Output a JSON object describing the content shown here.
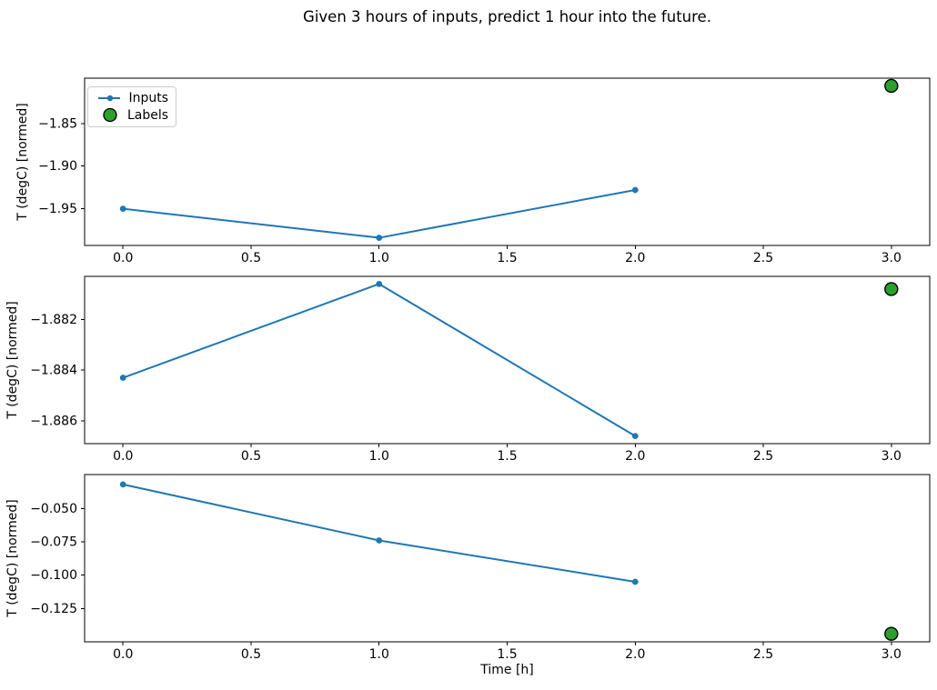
{
  "figure": {
    "title": "Given 3 hours of inputs, predict 1 hour into the future.",
    "xlabel": "Time [h]",
    "legend": {
      "inputs_label": "Inputs",
      "labels_label": "Labels"
    },
    "colors": {
      "inputs_line": "#1f77b4",
      "labels_fill": "#2ca02c",
      "labels_edge": "#000000",
      "spine": "#000000",
      "text": "#000000",
      "legend_border": "#cccccc"
    }
  },
  "chart_data": [
    {
      "type": "line",
      "title": "",
      "ylabel": "T (degC) [normed]",
      "series": [
        {
          "name": "Inputs",
          "x": [
            0,
            1,
            2
          ],
          "values": [
            -1.95,
            -1.984,
            -1.928
          ]
        }
      ],
      "label_point": {
        "name": "Labels",
        "x": 3,
        "y": -1.806
      },
      "xlim": [
        -0.15,
        3.15
      ],
      "ylim": [
        -1.993,
        -1.797
      ],
      "xticks": [
        0.0,
        0.5,
        1.0,
        1.5,
        2.0,
        2.5,
        3.0
      ],
      "xtick_labels": [
        "0.0",
        "0.5",
        "1.0",
        "1.5",
        "2.0",
        "2.5",
        "3.0"
      ],
      "yticks": [
        -1.85,
        -1.9,
        -1.95
      ],
      "ytick_labels": [
        "−1.85",
        "−1.90",
        "−1.95"
      ],
      "grid": false,
      "legend_position": "upper left",
      "has_legend": true
    },
    {
      "type": "line",
      "title": "",
      "ylabel": "T (degC) [normed]",
      "series": [
        {
          "name": "Inputs",
          "x": [
            0,
            1,
            2
          ],
          "values": [
            -1.8843,
            -1.8806,
            -1.8866
          ]
        }
      ],
      "label_point": {
        "name": "Labels",
        "x": 3,
        "y": -1.8808
      },
      "xlim": [
        -0.15,
        3.15
      ],
      "ylim": [
        -1.8869,
        -1.8803
      ],
      "xticks": [
        0.0,
        0.5,
        1.0,
        1.5,
        2.0,
        2.5,
        3.0
      ],
      "xtick_labels": [
        "0.0",
        "0.5",
        "1.0",
        "1.5",
        "2.0",
        "2.5",
        "3.0"
      ],
      "yticks": [
        -1.882,
        -1.884,
        -1.886
      ],
      "ytick_labels": [
        "−1.882",
        "−1.884",
        "−1.886"
      ],
      "grid": false,
      "has_legend": false
    },
    {
      "type": "line",
      "title": "",
      "ylabel": "T (degC) [normed]",
      "series": [
        {
          "name": "Inputs",
          "x": [
            0,
            1,
            2
          ],
          "values": [
            -0.032,
            -0.074,
            -0.105
          ]
        }
      ],
      "label_point": {
        "name": "Labels",
        "x": 3,
        "y": -0.144
      },
      "xlim": [
        -0.15,
        3.15
      ],
      "ylim": [
        -0.15,
        -0.0246
      ],
      "xticks": [
        0.0,
        0.5,
        1.0,
        1.5,
        2.0,
        2.5,
        3.0
      ],
      "xtick_labels": [
        "0.0",
        "0.5",
        "1.0",
        "1.5",
        "2.0",
        "2.5",
        "3.0"
      ],
      "yticks": [
        -0.05,
        -0.075,
        -0.1,
        -0.125
      ],
      "ytick_labels": [
        "−0.050",
        "−0.075",
        "−0.100",
        "−0.125"
      ],
      "grid": false,
      "has_legend": false
    }
  ]
}
